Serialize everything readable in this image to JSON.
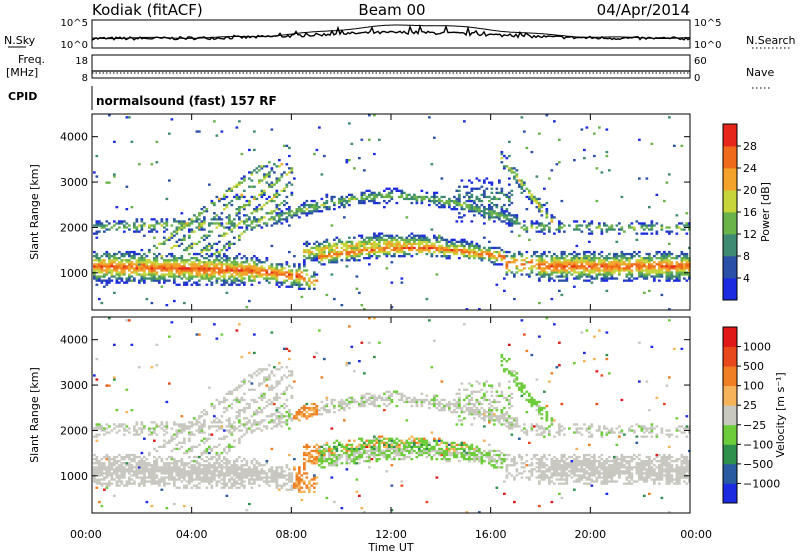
{
  "header": {
    "station": "Kodiak (fitACF)",
    "beam": "Beam 00",
    "date": "04/Apr/2014"
  },
  "side_labels": {
    "nsky": "N.Sky",
    "nsearch": "N.Search",
    "freq_top": "Freq.",
    "freq_unit": "[MHz]",
    "nave": "Nave",
    "cpid": "CPID",
    "cpid_value": "normalsound (fast) 157 RF"
  },
  "noise_panel": {
    "left_ticks": [
      "10^5",
      "10^0"
    ],
    "right_ticks": [
      "10^5",
      "10^0"
    ]
  },
  "freq_panel": {
    "left_ticks": [
      "18",
      "8"
    ],
    "right_ticks": [
      "60",
      "0"
    ]
  },
  "chart_data": [
    {
      "type": "heatmap",
      "name": "power",
      "ylabel": "Slant Range [km]",
      "ylim": [
        180,
        4500
      ],
      "yticks": [
        "4000",
        "3000",
        "2000",
        "1000"
      ],
      "colorbar_label": "Power [dB]",
      "colorbar_ticks": [
        "28",
        "24",
        "20",
        "16",
        "12",
        "8",
        "4"
      ],
      "colors": [
        "#1c2bdf",
        "#2a4fa6",
        "#3e8a72",
        "#69b34a",
        "#c7d43a",
        "#f3a22a",
        "#f06a1c",
        "#e6261a"
      ]
    },
    {
      "type": "heatmap",
      "name": "velocity",
      "ylabel": "Slant Range [km]",
      "ylim": [
        180,
        4500
      ],
      "yticks": [
        "4000",
        "3000",
        "2000",
        "1000"
      ],
      "colorbar_label": "Velocity [m s⁻¹]",
      "colorbar_ticks": [
        "1000",
        "500",
        "100",
        "25",
        "−25",
        "−100",
        "−500",
        "−1000"
      ],
      "colors": [
        "#1c2bdf",
        "#2a5aa0",
        "#2f8f4c",
        "#6ccc3a",
        "#c8c8c0",
        "#f5b35a",
        "#f07e22",
        "#e8491c",
        "#e01818"
      ]
    }
  ],
  "x_axis": {
    "ticks": [
      "00:00",
      "04:00",
      "08:00",
      "12:00",
      "16:00",
      "20:00",
      "00:00"
    ],
    "label": "Time UT"
  }
}
